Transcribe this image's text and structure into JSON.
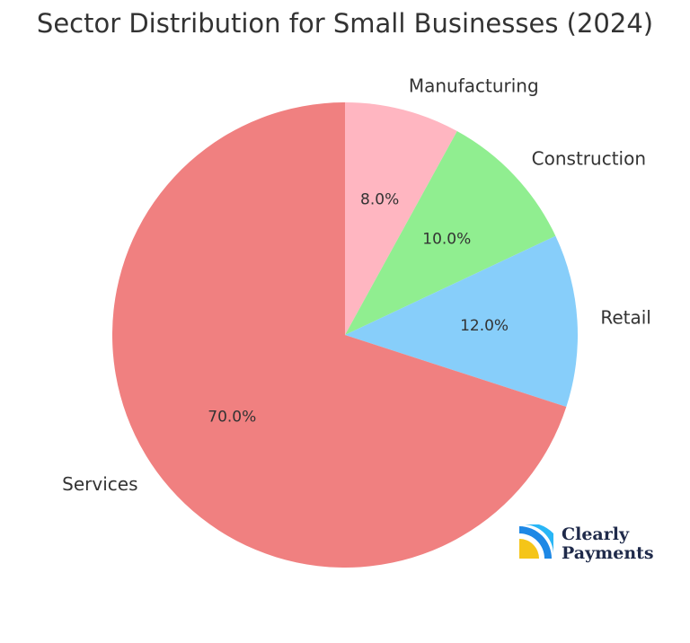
{
  "chart_data": {
    "type": "pie",
    "title": "Sector Distribution for Small Businesses (2024)",
    "categories": [
      "Manufacturing",
      "Construction",
      "Retail",
      "Services"
    ],
    "values": [
      8,
      10,
      12,
      70
    ],
    "value_labels": [
      "8.0%",
      "10.0%",
      "12.0%",
      "70.0%"
    ],
    "colors": [
      "#ffb6c1",
      "#90ee90",
      "#87cefa",
      "#f08080"
    ]
  },
  "logo": {
    "line1": "Clearly",
    "line2": "Payments"
  }
}
